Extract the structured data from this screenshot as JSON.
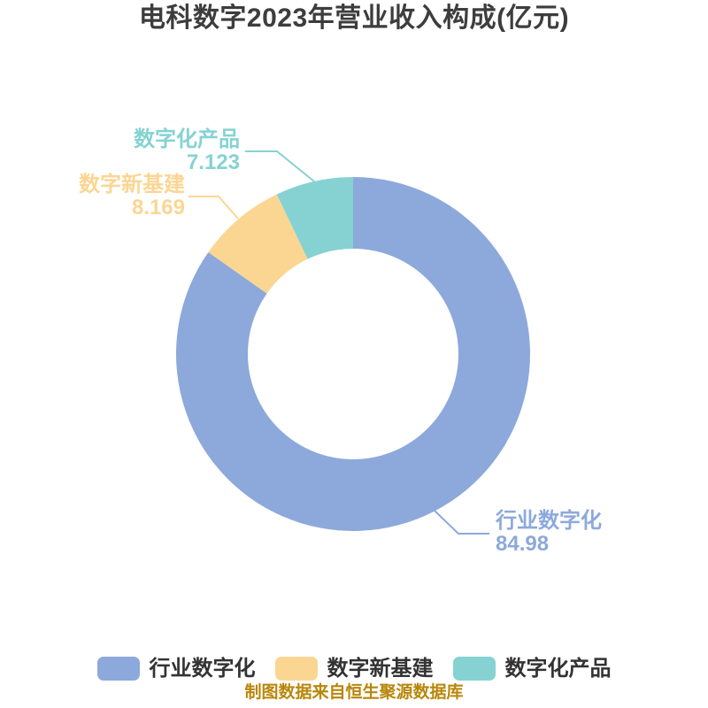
{
  "chart_data": {
    "type": "pie",
    "subtype": "donut",
    "title": "电科数字2023年营业收入构成(亿元)",
    "unit": "亿元",
    "categories": [
      "行业数字化",
      "数字新基建",
      "数字化产品"
    ],
    "values": [
      84.98,
      8.169,
      7.123
    ],
    "value_labels": [
      "84.98",
      "8.169",
      "7.123"
    ],
    "colors": [
      "#8DA9DB",
      "#FBD693",
      "#86D2D3"
    ],
    "start_angle_deg": 0,
    "clockwise": true,
    "inner_radius_ratio": 0.6,
    "legend_position": "bottom",
    "source_note": "制图数据来自恒生聚源数据库"
  },
  "style": {
    "background": "#FFFFFF",
    "title_color": "#3D3D3D",
    "legend_text_color": "#333333",
    "source_note_color": "#B8860B"
  }
}
